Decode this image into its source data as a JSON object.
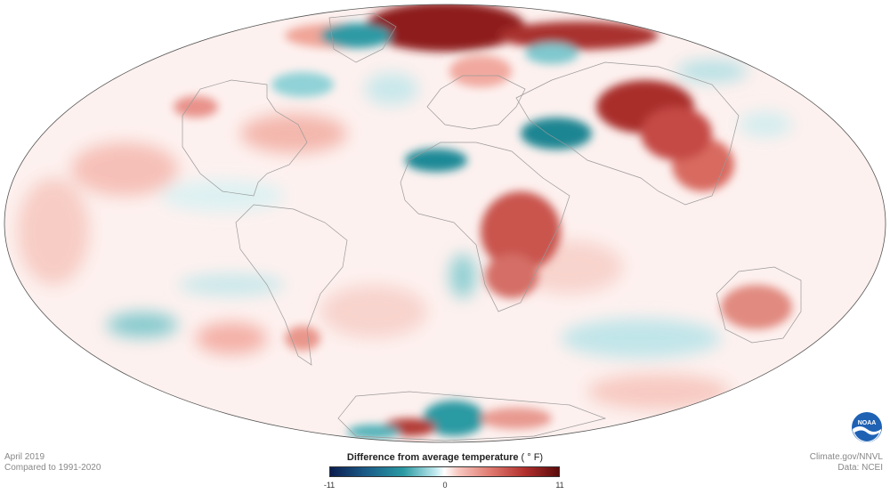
{
  "map": {
    "projection": "Mollweide",
    "coverage": "global",
    "colors": {
      "outline": "#333333",
      "coast": "#9a9a9a",
      "warm": "#b2302e",
      "warm_dark": "#5b0b0b",
      "cool": "#2a9aa3",
      "cool_dark": "#0b1d4f"
    },
    "features": [
      {
        "name": "arctic-warm-anomaly",
        "kind": "warm"
      },
      {
        "name": "greenland-cool-anomaly",
        "kind": "cool"
      },
      {
        "name": "siberia-warm-anomaly",
        "kind": "warm"
      },
      {
        "name": "middle-east-cool-anomaly",
        "kind": "cool"
      },
      {
        "name": "north-africa-cool-anomaly",
        "kind": "cool"
      },
      {
        "name": "central-africa-warm-anomaly",
        "kind": "warm"
      },
      {
        "name": "antarctica-mixed-anomaly",
        "kind": "mixed"
      },
      {
        "name": "australia-warm-anomaly",
        "kind": "warm"
      }
    ]
  },
  "meta": {
    "date": "April 2019",
    "baseline": "Compared to 1991-2020",
    "credit": "Climate.gov/NNVL",
    "source": "Data: NCEI"
  },
  "legend": {
    "title": "Difference from average temperature",
    "unit": "( ° F)",
    "min": "-11",
    "mid": "0",
    "max": "11"
  },
  "logo": {
    "text": "NOAA",
    "icon": "noaa-logo-icon"
  }
}
